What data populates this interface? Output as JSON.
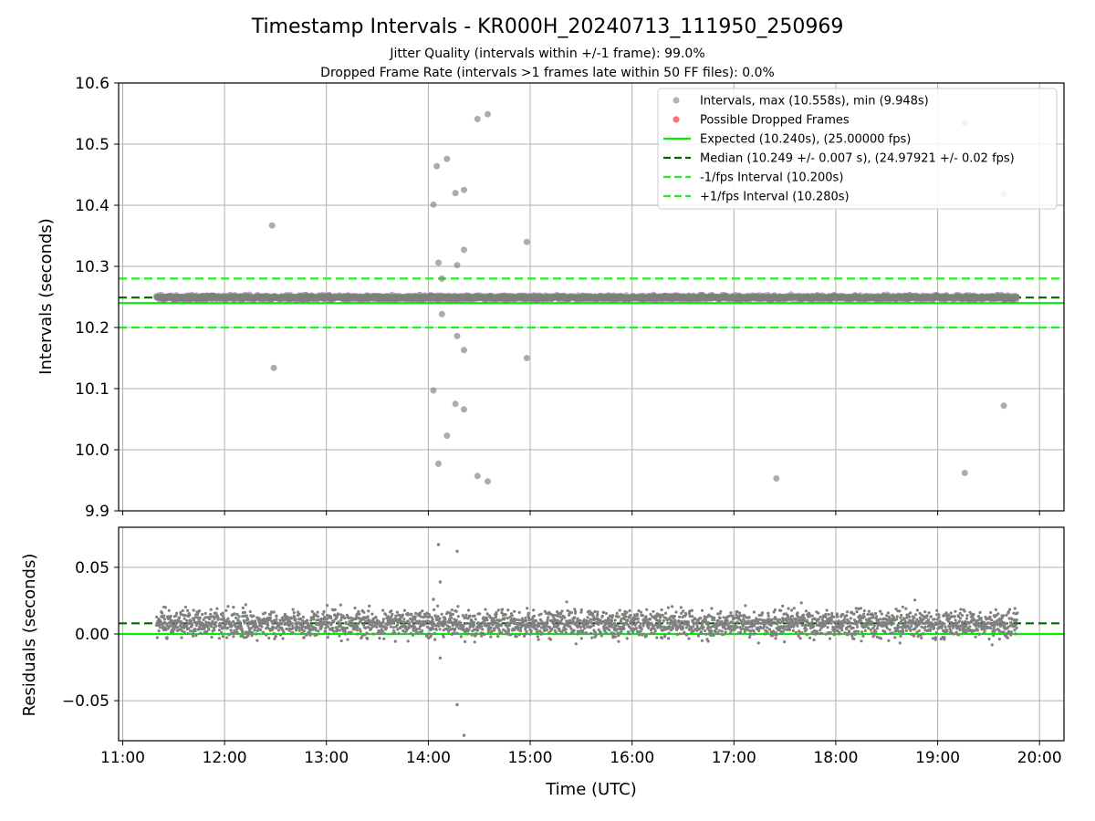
{
  "figure": {
    "title": "Timestamp Intervals - KR000H_20240713_111950_250969",
    "subtitle_1": "Jitter Quality (intervals within +/-1 frame): 99.0%",
    "subtitle_2": "Dropped Frame Rate (intervals >1 frames late within 50 FF files): 0.0%"
  },
  "colors": {
    "intervals": "#808080",
    "dropped": "#ff4d4d",
    "expected": "#00ee00",
    "median": "#006400",
    "fps_band": "#22ee22",
    "grid": "#b0b0b0"
  },
  "chart_data": [
    {
      "type": "scatter",
      "name": "intervals",
      "xlabel": "",
      "ylabel": "Intervals (seconds)",
      "ylim": [
        9.9,
        10.6
      ],
      "xlim_hours": [
        10.96,
        20.24
      ],
      "grid": true,
      "legend_position": "top-right",
      "y_ticks": [
        "9.9",
        "10.0",
        "10.1",
        "10.2",
        "10.3",
        "10.4",
        "10.5",
        "10.6"
      ],
      "x_ticks": [
        "11:00",
        "12:00",
        "13:00",
        "14:00",
        "15:00",
        "16:00",
        "17:00",
        "18:00",
        "19:00",
        "20:00"
      ],
      "lines": [
        {
          "name": "expected",
          "y": 10.24,
          "style": "solid"
        },
        {
          "name": "median",
          "y": 10.249,
          "style": "dashed"
        },
        {
          "name": "minus_fps",
          "y": 10.2,
          "style": "dashed"
        },
        {
          "name": "plus_fps",
          "y": 10.28,
          "style": "dashed"
        }
      ],
      "series_range": {
        "x_start_hours": 11.33,
        "x_end_hours": 19.78,
        "count": 2960,
        "center": 10.249,
        "spread": 0.009
      },
      "outliers": [
        {
          "x": "12:28",
          "y": 10.367
        },
        {
          "x": "12:29",
          "y": 10.134
        },
        {
          "x": "14:03",
          "y": 10.401
        },
        {
          "x": "14:03",
          "y": 10.097
        },
        {
          "x": "14:05",
          "y": 10.464
        },
        {
          "x": "14:06",
          "y": 10.306
        },
        {
          "x": "14:06",
          "y": 9.977
        },
        {
          "x": "14:08",
          "y": 10.28
        },
        {
          "x": "14:08",
          "y": 10.222
        },
        {
          "x": "14:11",
          "y": 10.476
        },
        {
          "x": "14:11",
          "y": 10.023
        },
        {
          "x": "14:16",
          "y": 10.42
        },
        {
          "x": "14:17",
          "y": 10.302
        },
        {
          "x": "14:17",
          "y": 10.186
        },
        {
          "x": "14:16",
          "y": 10.075
        },
        {
          "x": "14:21",
          "y": 10.425
        },
        {
          "x": "14:21",
          "y": 10.327
        },
        {
          "x": "14:21",
          "y": 10.163
        },
        {
          "x": "14:21",
          "y": 10.066
        },
        {
          "x": "14:29",
          "y": 10.541
        },
        {
          "x": "14:29",
          "y": 9.957
        },
        {
          "x": "14:35",
          "y": 10.549
        },
        {
          "x": "14:35",
          "y": 9.948
        },
        {
          "x": "14:58",
          "y": 10.34
        },
        {
          "x": "14:58",
          "y": 10.15
        },
        {
          "x": "17:25",
          "y": 9.953
        },
        {
          "x": "19:16",
          "y": 10.534
        },
        {
          "x": "19:16",
          "y": 9.962
        },
        {
          "x": "19:39",
          "y": 10.418
        },
        {
          "x": "19:39",
          "y": 10.072
        }
      ]
    },
    {
      "type": "scatter",
      "name": "residuals",
      "xlabel": "Time (UTC)",
      "ylabel": "Residuals (seconds)",
      "ylim": [
        -0.08,
        0.08
      ],
      "grid": true,
      "y_ticks": [
        "−0.05",
        "0.00",
        "0.05"
      ],
      "y_tick_values": [
        -0.05,
        0.0,
        0.05
      ],
      "lines": [
        {
          "name": "expected",
          "y": 0.0,
          "style": "solid"
        },
        {
          "name": "median",
          "y": 0.008,
          "style": "dashed"
        }
      ],
      "series_range": {
        "x_start_hours": 11.33,
        "x_end_hours": 19.78,
        "count": 2960,
        "center": 0.008,
        "spread": 0.009
      },
      "outliers": [
        {
          "x": "14:06",
          "y": 0.067
        },
        {
          "x": "14:17",
          "y": 0.062
        },
        {
          "x": "14:07",
          "y": 0.039
        },
        {
          "x": "14:17",
          "y": -0.053
        },
        {
          "x": "14:21",
          "y": -0.076
        },
        {
          "x": "14:07",
          "y": -0.018
        },
        {
          "x": "14:03",
          "y": 0.026
        }
      ]
    }
  ],
  "legend": {
    "items": [
      {
        "key": "intervals",
        "label": "Intervals, max (10.558s), min (9.948s)",
        "marker": "dot",
        "color": "#808080"
      },
      {
        "key": "dropped",
        "label": "Possible Dropped Frames",
        "marker": "dot",
        "color": "#ff4d4d"
      },
      {
        "key": "expected",
        "label": "Expected (10.240s), (25.00000 fps)",
        "marker": "solid",
        "color": "#00ee00"
      },
      {
        "key": "median",
        "label": "Median (10.249 +/- 0.007 s), (24.97921 +/- 0.02 fps)",
        "marker": "dashed",
        "color": "#006400"
      },
      {
        "key": "minus_fps",
        "label": "-1/fps Interval (10.200s)",
        "marker": "dashed",
        "color": "#22ee22"
      },
      {
        "key": "plus_fps",
        "label": "+1/fps Interval (10.280s)",
        "marker": "dashed",
        "color": "#22ee22"
      }
    ]
  }
}
